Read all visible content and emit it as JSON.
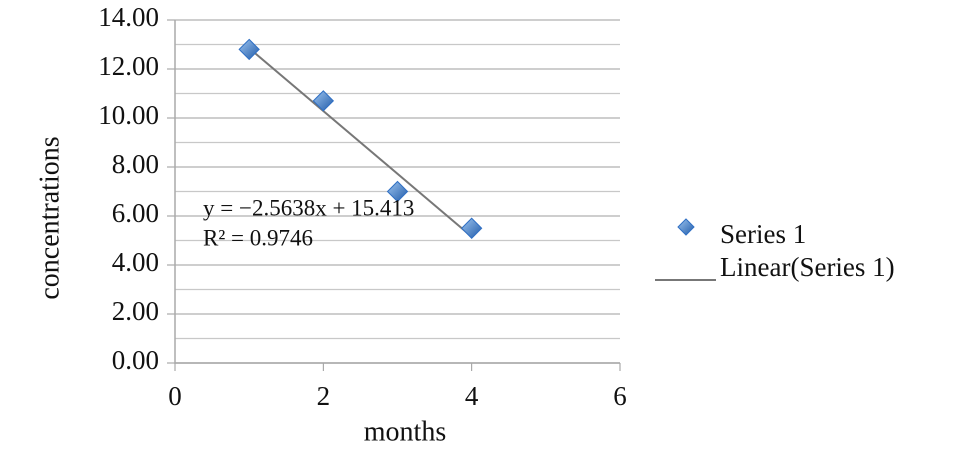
{
  "chart_data": {
    "type": "scatter",
    "x_label": "months",
    "y_label": "concentrations",
    "series": [
      {
        "name": "Series 1",
        "color": "#2f6fc4",
        "x": [
          1,
          2,
          3,
          4
        ],
        "values": [
          12.8,
          10.7,
          7.0,
          5.5
        ]
      }
    ],
    "trendline": {
      "name": "Linear(Series 1)",
      "color": "#777777",
      "slope": -2.5638,
      "intercept": 15.413,
      "r2": 0.9746,
      "equation_label": "y = −2.5638x + 15.413",
      "r2_label": "R² = 0.9746"
    },
    "xlim": [
      0,
      6
    ],
    "xticks": [
      0,
      2,
      4,
      6
    ],
    "ylim": [
      0,
      14
    ],
    "yticks": [
      {
        "value": 0,
        "label": "0.00"
      },
      {
        "value": 2,
        "label": "2.00"
      },
      {
        "value": 4,
        "label": "4.00"
      },
      {
        "value": 6,
        "label": "6.00"
      },
      {
        "value": 8,
        "label": "8.00"
      },
      {
        "value": 10,
        "label": "10.00"
      },
      {
        "value": 12,
        "label": "12.00"
      },
      {
        "value": 14,
        "label": "14.00"
      }
    ],
    "grid": true,
    "legend": "right"
  }
}
